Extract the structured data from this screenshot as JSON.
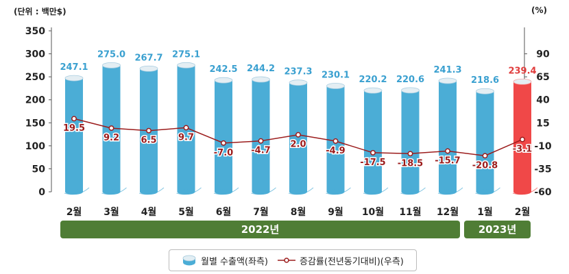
{
  "units": {
    "left": "(단위 : 백만$)",
    "right": "(%)"
  },
  "chart_data": {
    "type": "bar",
    "categories": [
      "2월",
      "3월",
      "4월",
      "5월",
      "6월",
      "7월",
      "8월",
      "9월",
      "10월",
      "11월",
      "12월",
      "1월",
      "2월"
    ],
    "series": [
      {
        "name": "월별 수출액(좌측)",
        "type": "bar",
        "values": [
          247.1,
          275.0,
          267.7,
          275.1,
          242.5,
          244.2,
          237.3,
          230.1,
          220.2,
          220.6,
          241.3,
          218.6,
          239.4
        ],
        "labels": [
          "247.1",
          "275.0",
          "267.7",
          "275.1",
          "242.5",
          "244.2",
          "237.3",
          "230.1",
          "220.2",
          "220.6",
          "241.3",
          "218.6",
          "239.4"
        ],
        "axis": "left"
      },
      {
        "name": "증감률(전년동기대비)(우측)",
        "type": "line",
        "values": [
          19.5,
          9.2,
          6.5,
          9.7,
          -7.0,
          -4.7,
          2.0,
          -4.9,
          -17.5,
          -18.5,
          -15.7,
          -20.8,
          -3.1
        ],
        "labels": [
          "19.5",
          "9.2",
          "6.5",
          "9.7",
          "-7.0",
          "-4.7",
          "2.0",
          "-4.9",
          "-17.5",
          "-18.5",
          "-15.7",
          "-20.8",
          "-3.1"
        ],
        "axis": "right"
      }
    ],
    "y_left": {
      "range": [
        0,
        350
      ],
      "ticks": [
        "350",
        "300",
        "250",
        "200",
        "150",
        "100",
        "50",
        "0"
      ]
    },
    "y_right": {
      "range": [
        -60,
        115
      ],
      "ticks": [
        "90",
        "65",
        "40",
        "15",
        "-10",
        "-35",
        "-60"
      ]
    },
    "year_groups": [
      {
        "label": "2022년",
        "start": 0,
        "end": 10
      },
      {
        "label": "2023년",
        "start": 11,
        "end": 12
      }
    ],
    "highlight_index": 12,
    "colors": {
      "bar": "#4badd6",
      "bar_highlight": "#f04848",
      "bar_label": "#3aa0d0",
      "bar_label_highlight": "#e03c3c",
      "line": "#9b1b1b",
      "point_label": "#9b1b1b",
      "year_bar": "#4f7d35"
    },
    "legend_position": "bottom"
  }
}
